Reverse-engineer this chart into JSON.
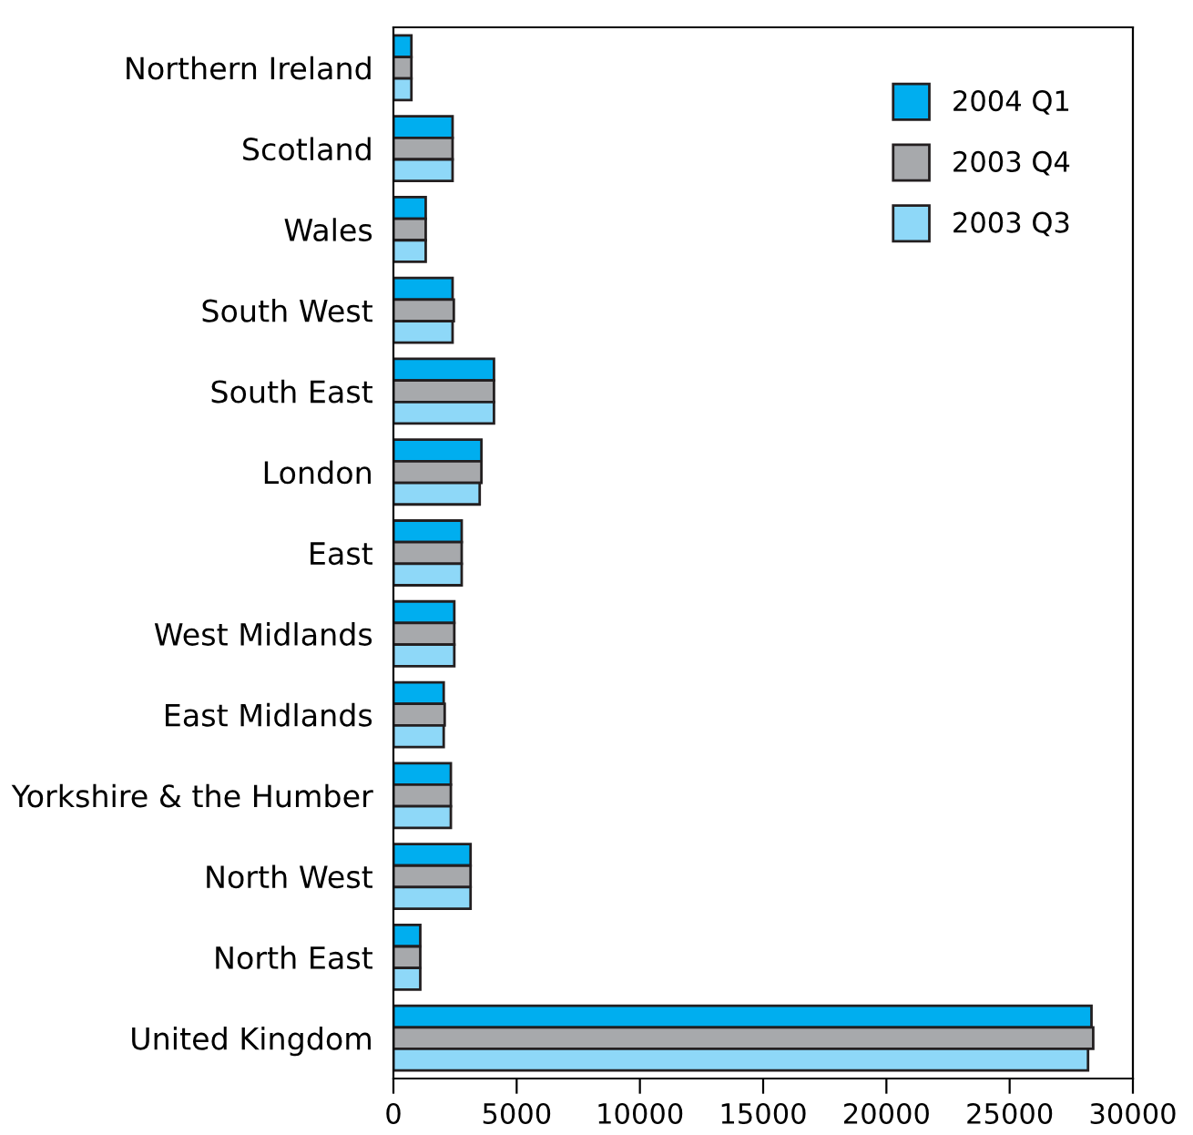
{
  "chart_data": {
    "type": "bar",
    "orientation": "horizontal",
    "categories": [
      "Northern Ireland",
      "Scotland",
      "Wales",
      "South West",
      "South East",
      "London",
      "East",
      "West Midlands",
      "East Midlands",
      "Yorkshire & the Humber",
      "North West",
      "North East",
      "United Kingdom"
    ],
    "series": [
      {
        "name": "2004 Q1",
        "color": "#00aeef",
        "values": [
          730,
          2400,
          1310,
          2400,
          4080,
          3570,
          2770,
          2470,
          2040,
          2330,
          3130,
          1090,
          28320
        ]
      },
      {
        "name": "2003 Q4",
        "color": "#a7a9ac",
        "values": [
          730,
          2400,
          1310,
          2450,
          4080,
          3570,
          2770,
          2470,
          2080,
          2330,
          3130,
          1090,
          28390
        ]
      },
      {
        "name": "2003 Q3",
        "color": "#8ed8f8",
        "values": [
          730,
          2400,
          1310,
          2400,
          4080,
          3500,
          2770,
          2470,
          2040,
          2330,
          3130,
          1090,
          28180
        ]
      }
    ],
    "xlim": [
      0,
      30000
    ],
    "xticks": [
      0,
      5000,
      10000,
      15000,
      20000,
      25000,
      30000
    ],
    "grid": false,
    "legend": "top right"
  }
}
